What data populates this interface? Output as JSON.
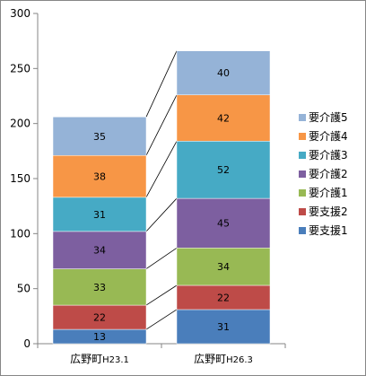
{
  "chart_data": {
    "type": "bar",
    "stacked": true,
    "categories": [
      "広野町H23.1",
      "広野町H26.3"
    ],
    "category_parts": [
      {
        "main": "広野町",
        "sub": "H23.1"
      },
      {
        "main": "広野町",
        "sub": "H26.3"
      }
    ],
    "ylim": [
      0,
      300
    ],
    "yticks": [
      0,
      50,
      100,
      150,
      200,
      250,
      300
    ],
    "series_lines": true,
    "grid": false,
    "legend_position": "right",
    "series": [
      {
        "name": "要支援1",
        "values": [
          13,
          31
        ],
        "color": "#4a7ebb"
      },
      {
        "name": "要支援2",
        "values": [
          22,
          22
        ],
        "color": "#be4b48"
      },
      {
        "name": "要介護1",
        "values": [
          33,
          34
        ],
        "color": "#98b954"
      },
      {
        "name": "要介護2",
        "values": [
          34,
          45
        ],
        "color": "#7d5fa0"
      },
      {
        "name": "要介護3",
        "values": [
          31,
          52
        ],
        "color": "#46aac5"
      },
      {
        "name": "要介護4",
        "values": [
          38,
          42
        ],
        "color": "#f79646"
      },
      {
        "name": "要介護5",
        "values": [
          35,
          40
        ],
        "color": "#95b3d7"
      }
    ]
  }
}
